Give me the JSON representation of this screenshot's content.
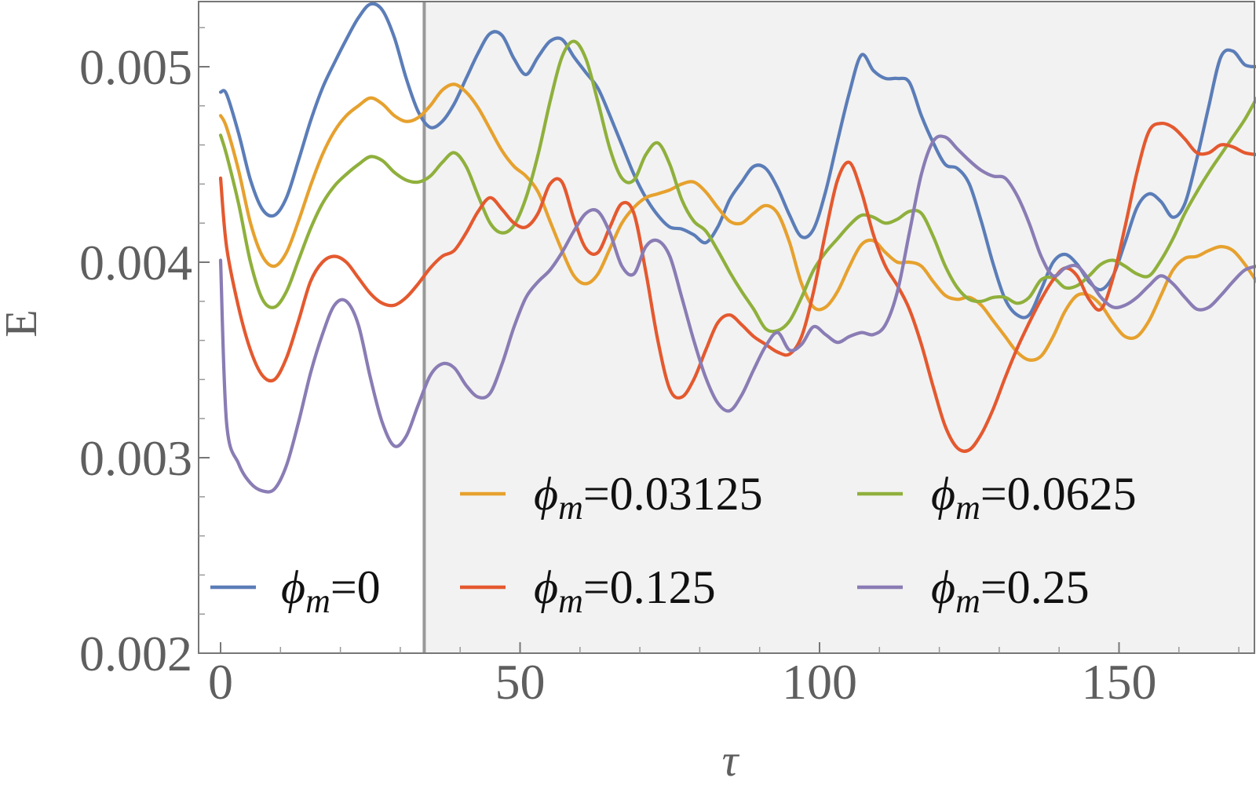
{
  "chart_data": {
    "type": "line",
    "title": "",
    "xlabel": "τ",
    "ylabel": "E",
    "xlim": [
      -4,
      176
    ],
    "ylim": [
      0.002,
      0.00535
    ],
    "x_ticks": [
      0,
      50,
      100,
      150
    ],
    "x_tick_labels": [
      "0",
      "50",
      "100",
      "150"
    ],
    "y_ticks": [
      0.002,
      0.003,
      0.004,
      0.005
    ],
    "y_tick_labels": [
      "0.002",
      "0.003",
      "0.004",
      "0.005"
    ],
    "grid": false,
    "legend_position": "bottom, inside plot",
    "shaded_region": {
      "x_from": 34,
      "x_to": 176,
      "color": "#f2f2f2"
    },
    "vertical_line": {
      "x": 34,
      "color": "#999999"
    },
    "series": [
      {
        "name": "0",
        "legend_prefix": "ϕ",
        "legend_sub": "m",
        "legend_value": "=0",
        "color": "#5b7db8",
        "x": [
          0,
          1,
          3,
          5,
          7,
          9,
          11,
          13,
          15,
          17,
          19,
          21,
          23,
          25,
          27,
          29,
          31,
          33,
          35,
          37,
          39,
          41,
          43,
          45,
          47,
          49,
          51,
          53,
          55,
          57,
          59,
          61,
          63,
          65,
          67,
          69,
          71,
          73,
          75,
          77,
          79,
          81,
          83,
          85,
          87,
          89,
          91,
          93,
          95,
          97,
          99,
          101,
          103,
          105,
          107,
          109,
          111,
          113,
          115,
          117,
          119,
          121,
          123,
          125,
          127,
          129,
          131,
          133,
          135,
          137,
          139,
          141,
          143,
          145,
          147,
          149,
          151,
          153,
          155,
          157,
          159,
          161,
          163,
          165,
          167,
          169,
          171,
          173
        ],
        "values": [
          0.00487,
          0.00486,
          0.00466,
          0.00442,
          0.00427,
          0.00424,
          0.00433,
          0.00452,
          0.00472,
          0.00489,
          0.00502,
          0.00514,
          0.00525,
          0.00532,
          0.00529,
          0.00515,
          0.00494,
          0.00477,
          0.00469,
          0.00472,
          0.00481,
          0.00494,
          0.00507,
          0.00517,
          0.00516,
          0.00504,
          0.00496,
          0.00505,
          0.00513,
          0.00514,
          0.00505,
          0.00497,
          0.00489,
          0.00475,
          0.0046,
          0.00445,
          0.00433,
          0.00424,
          0.00418,
          0.00417,
          0.00414,
          0.0041,
          0.00418,
          0.00432,
          0.00441,
          0.00449,
          0.00448,
          0.00438,
          0.00424,
          0.00413,
          0.00417,
          0.00436,
          0.00462,
          0.00487,
          0.00506,
          0.00498,
          0.00494,
          0.00494,
          0.00492,
          0.00475,
          0.00461,
          0.0045,
          0.00448,
          0.0044,
          0.00421,
          0.00399,
          0.00381,
          0.00373,
          0.00373,
          0.00386,
          0.004,
          0.00404,
          0.00399,
          0.0039,
          0.00386,
          0.00393,
          0.0041,
          0.00428,
          0.00435,
          0.00431,
          0.00423,
          0.0043,
          0.00453,
          0.0048,
          0.00505,
          0.00508,
          0.00501,
          0.005
        ]
      },
      {
        "name": "0.03125",
        "legend_prefix": "ϕ",
        "legend_sub": "m",
        "legend_value": "=0.03125",
        "color": "#e6a12e",
        "x": [
          0,
          1,
          3,
          5,
          7,
          9,
          11,
          13,
          15,
          17,
          19,
          21,
          23,
          25,
          27,
          29,
          31,
          33,
          35,
          37,
          39,
          41,
          43,
          45,
          47,
          49,
          51,
          53,
          55,
          57,
          59,
          61,
          63,
          65,
          67,
          69,
          71,
          73,
          75,
          77,
          79,
          81,
          83,
          85,
          87,
          89,
          91,
          93,
          95,
          97,
          99,
          101,
          103,
          105,
          107,
          109,
          111,
          113,
          115,
          117,
          119,
          121,
          123,
          125,
          127,
          129,
          131,
          133,
          135,
          137,
          139,
          141,
          143,
          145,
          147,
          149,
          151,
          153,
          155,
          157,
          159,
          161,
          163,
          165,
          167,
          169,
          171,
          173
        ],
        "values": [
          0.00475,
          0.00469,
          0.00447,
          0.0042,
          0.00403,
          0.00398,
          0.00405,
          0.00421,
          0.00439,
          0.00455,
          0.00467,
          0.00475,
          0.0048,
          0.00484,
          0.00481,
          0.00475,
          0.00472,
          0.00474,
          0.0048,
          0.00488,
          0.00491,
          0.00487,
          0.00479,
          0.00468,
          0.00457,
          0.00449,
          0.00444,
          0.00436,
          0.00421,
          0.00406,
          0.00393,
          0.00389,
          0.00394,
          0.00407,
          0.0042,
          0.00428,
          0.00433,
          0.00435,
          0.00437,
          0.0044,
          0.00441,
          0.00436,
          0.00428,
          0.00421,
          0.0042,
          0.00425,
          0.00429,
          0.00425,
          0.0041,
          0.00389,
          0.00377,
          0.00377,
          0.00385,
          0.00398,
          0.00409,
          0.00411,
          0.00405,
          0.004,
          0.004,
          0.00398,
          0.0039,
          0.00383,
          0.00381,
          0.00382,
          0.00378,
          0.0037,
          0.00362,
          0.00354,
          0.0035,
          0.00352,
          0.00362,
          0.00375,
          0.00383,
          0.00383,
          0.00378,
          0.00369,
          0.00362,
          0.00362,
          0.0037,
          0.00383,
          0.00396,
          0.00402,
          0.00403,
          0.00406,
          0.00408,
          0.00406,
          0.00399,
          0.0039
        ]
      },
      {
        "name": "0.0625",
        "legend_prefix": "ϕ",
        "legend_sub": "m",
        "legend_value": "=0.0625",
        "color": "#8fb03c",
        "x": [
          0,
          1,
          3,
          5,
          7,
          9,
          11,
          13,
          15,
          17,
          19,
          21,
          23,
          25,
          27,
          29,
          31,
          33,
          35,
          37,
          39,
          41,
          43,
          45,
          47,
          49,
          51,
          53,
          55,
          57,
          59,
          61,
          63,
          65,
          67,
          69,
          71,
          73,
          75,
          77,
          79,
          81,
          83,
          85,
          87,
          89,
          91,
          93,
          95,
          97,
          99,
          101,
          103,
          105,
          107,
          109,
          111,
          113,
          115,
          117,
          119,
          121,
          123,
          125,
          127,
          129,
          131,
          133,
          135,
          137,
          139,
          141,
          143,
          145,
          147,
          149,
          151,
          153,
          155,
          157,
          159,
          161,
          163,
          165,
          167,
          169,
          171,
          173
        ],
        "values": [
          0.00465,
          0.00455,
          0.0043,
          0.004,
          0.00381,
          0.00377,
          0.00385,
          0.00401,
          0.00417,
          0.0043,
          0.00439,
          0.00445,
          0.0045,
          0.00454,
          0.00452,
          0.00446,
          0.00442,
          0.00441,
          0.00444,
          0.00451,
          0.00456,
          0.00449,
          0.00434,
          0.0042,
          0.00415,
          0.00419,
          0.00433,
          0.00455,
          0.00482,
          0.00505,
          0.00513,
          0.00504,
          0.00482,
          0.00458,
          0.00443,
          0.00442,
          0.00455,
          0.00461,
          0.0045,
          0.00432,
          0.00421,
          0.00416,
          0.00406,
          0.00395,
          0.00385,
          0.00376,
          0.00366,
          0.00365,
          0.0037,
          0.00382,
          0.00396,
          0.00405,
          0.00412,
          0.00419,
          0.00424,
          0.00423,
          0.0042,
          0.00422,
          0.00426,
          0.00425,
          0.00413,
          0.00398,
          0.00387,
          0.00381,
          0.0038,
          0.00382,
          0.00382,
          0.00379,
          0.00382,
          0.00391,
          0.00392,
          0.00387,
          0.00388,
          0.00393,
          0.00399,
          0.00401,
          0.00398,
          0.00394,
          0.00393,
          0.00401,
          0.00412,
          0.00425,
          0.00436,
          0.00446,
          0.00455,
          0.00464,
          0.00473,
          0.00484
        ]
      },
      {
        "name": "0.125",
        "legend_prefix": "ϕ",
        "legend_sub": "m",
        "legend_value": "=0.125",
        "color": "#e4592f",
        "x": [
          0,
          1,
          3,
          5,
          7,
          9,
          11,
          13,
          15,
          17,
          19,
          21,
          23,
          25,
          27,
          29,
          31,
          33,
          35,
          37,
          39,
          41,
          43,
          45,
          47,
          49,
          51,
          53,
          55,
          57,
          59,
          61,
          63,
          65,
          67,
          69,
          71,
          73,
          75,
          77,
          79,
          81,
          83,
          85,
          87,
          89,
          91,
          93,
          95,
          97,
          99,
          101,
          103,
          105,
          107,
          109,
          111,
          113,
          115,
          117,
          119,
          121,
          123,
          125,
          127,
          129,
          131,
          133,
          135,
          137,
          139,
          141,
          143,
          145,
          147,
          149,
          151,
          153,
          155,
          157,
          159,
          161,
          163,
          165,
          167,
          169,
          171,
          173
        ],
        "values": [
          0.00443,
          0.00408,
          0.00377,
          0.00355,
          0.00342,
          0.0034,
          0.00351,
          0.0037,
          0.0039,
          0.004,
          0.00403,
          0.004,
          0.00392,
          0.00384,
          0.00379,
          0.00378,
          0.00382,
          0.00389,
          0.00397,
          0.00403,
          0.00406,
          0.00415,
          0.00426,
          0.00433,
          0.00427,
          0.0042,
          0.00418,
          0.00425,
          0.0044,
          0.00441,
          0.00422,
          0.00407,
          0.00405,
          0.00418,
          0.0043,
          0.00425,
          0.00395,
          0.0036,
          0.00335,
          0.00331,
          0.0034,
          0.00355,
          0.00369,
          0.00373,
          0.00368,
          0.00362,
          0.00358,
          0.00354,
          0.00353,
          0.00362,
          0.00385,
          0.00415,
          0.00442,
          0.00451,
          0.00436,
          0.00414,
          0.00398,
          0.00388,
          0.00376,
          0.00358,
          0.00336,
          0.00316,
          0.00305,
          0.00304,
          0.00312,
          0.00325,
          0.00341,
          0.00356,
          0.00369,
          0.00381,
          0.00391,
          0.00397,
          0.00393,
          0.00381,
          0.00376,
          0.00392,
          0.00418,
          0.00446,
          0.00467,
          0.00471,
          0.00469,
          0.00463,
          0.00456,
          0.00456,
          0.0046,
          0.00459,
          0.00456,
          0.00455
        ]
      },
      {
        "name": "0.25",
        "legend_prefix": "ϕ",
        "legend_sub": "m",
        "legend_value": "=0.25",
        "color": "#8a7cb4",
        "x": [
          0,
          1,
          3,
          5,
          7,
          9,
          11,
          13,
          15,
          17,
          19,
          21,
          23,
          25,
          27,
          29,
          31,
          33,
          35,
          37,
          39,
          41,
          43,
          45,
          47,
          49,
          51,
          53,
          55,
          57,
          59,
          61,
          63,
          65,
          67,
          69,
          71,
          73,
          75,
          77,
          79,
          81,
          83,
          85,
          87,
          89,
          91,
          93,
          95,
          97,
          99,
          101,
          103,
          105,
          107,
          109,
          111,
          113,
          115,
          117,
          119,
          121,
          123,
          125,
          127,
          129,
          131,
          133,
          135,
          137,
          139,
          141,
          143,
          145,
          147,
          149,
          151,
          153,
          155,
          157,
          159,
          161,
          163,
          165,
          167,
          169,
          171,
          173
        ],
        "values": [
          0.00401,
          0.00318,
          0.00297,
          0.00287,
          0.00283,
          0.00284,
          0.00296,
          0.00318,
          0.00343,
          0.00363,
          0.00378,
          0.0038,
          0.00368,
          0.00341,
          0.00318,
          0.00306,
          0.00311,
          0.00327,
          0.00342,
          0.00348,
          0.00346,
          0.00337,
          0.00331,
          0.00333,
          0.00348,
          0.00367,
          0.00382,
          0.0039,
          0.00396,
          0.00405,
          0.00416,
          0.00425,
          0.00426,
          0.00415,
          0.00398,
          0.00394,
          0.00408,
          0.00411,
          0.00403,
          0.00382,
          0.0036,
          0.00341,
          0.00328,
          0.00324,
          0.00332,
          0.00345,
          0.00357,
          0.00364,
          0.00355,
          0.00358,
          0.00367,
          0.00363,
          0.00359,
          0.00362,
          0.00364,
          0.00363,
          0.00368,
          0.00385,
          0.00415,
          0.00445,
          0.00462,
          0.00464,
          0.00458,
          0.00452,
          0.00447,
          0.00444,
          0.00443,
          0.00434,
          0.0042,
          0.00403,
          0.00393,
          0.00397,
          0.00398,
          0.00391,
          0.00382,
          0.00377,
          0.00378,
          0.00382,
          0.00388,
          0.00393,
          0.00389,
          0.00382,
          0.00376,
          0.00377,
          0.00383,
          0.0039,
          0.00396,
          0.00398
        ]
      }
    ]
  }
}
